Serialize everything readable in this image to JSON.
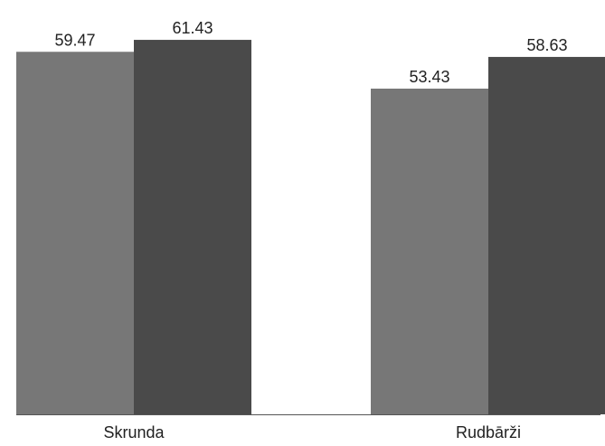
{
  "chart_data": {
    "type": "bar",
    "title": "",
    "xlabel": "",
    "ylabel": "",
    "categories": [
      "Skrunda",
      "Rudbārži"
    ],
    "series": [
      {
        "values": [
          59.47,
          53.43
        ],
        "color": "#777777",
        "value_labels": [
          "59.47",
          "53.43"
        ]
      },
      {
        "values": [
          61.43,
          58.63
        ],
        "color": "#4a4a4a",
        "value_labels": [
          "61.43",
          "58.63"
        ]
      }
    ],
    "ylim": [
      0,
      65
    ],
    "grid": false,
    "legend": "none",
    "axis_color": "#555555",
    "text_color": "#222222"
  }
}
